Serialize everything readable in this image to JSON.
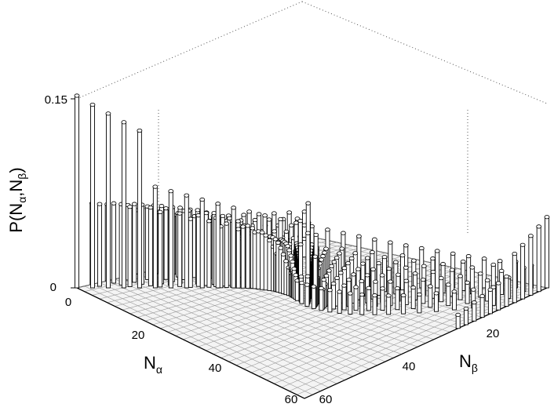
{
  "chart_data": {
    "type": "bar3d",
    "zlabel_main": "P(N",
    "zlabel_sub1": "α",
    "zlabel_sep": ",N",
    "zlabel_sub2": "β",
    "zlabel_close": ")",
    "xlabel_main": "N",
    "xlabel_sub": "α",
    "ylabel_main": "N",
    "ylabel_sub": "β",
    "zticks": [
      {
        "value": 0,
        "label": "0"
      },
      {
        "value": 0.15,
        "label": "0.15"
      }
    ],
    "xticks": [
      {
        "value": 0,
        "label": "0"
      },
      {
        "value": 20,
        "label": "20"
      },
      {
        "value": 40,
        "label": "40"
      },
      {
        "value": 60,
        "label": "60"
      }
    ],
    "yticks": [
      {
        "value": 20,
        "label": "20"
      },
      {
        "value": 40,
        "label": "40"
      },
      {
        "value": 60,
        "label": "60"
      }
    ],
    "xlim": [
      0,
      60
    ],
    "ylim": [
      0,
      60
    ],
    "zlim": [
      0,
      0.15
    ],
    "description_of_data": "probability distribution P(N_alpha, N_beta) on an integer grid; tall bars near the left/right corners, center peak exceeding 0.15, low ridge elsewhere",
    "series": [
      {
        "name": "",
        "x": [
          1,
          2,
          3,
          4,
          5,
          7,
          9,
          11,
          13,
          15,
          17,
          19,
          21,
          23,
          25,
          27,
          29,
          30,
          31,
          33,
          35,
          37,
          39,
          41,
          43,
          45,
          47,
          49,
          51,
          53,
          55,
          57,
          58,
          59
        ],
        "z_edge_left": [
          0.15,
          0.148,
          0.147,
          0.146,
          0.14,
          0.09,
          0.082,
          0.076,
          0.07,
          0.066,
          0.063,
          0.06,
          0.058,
          0.056,
          0.055,
          0.054,
          0.053
        ]
      }
    ]
  }
}
